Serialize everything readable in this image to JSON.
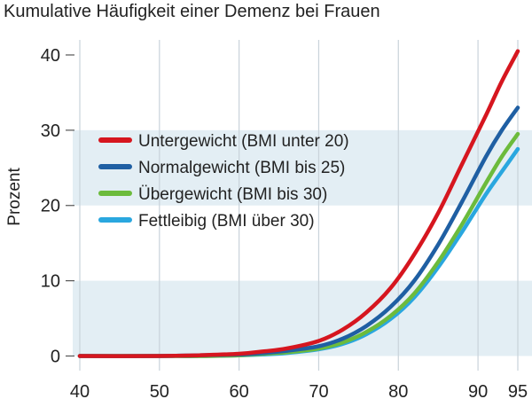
{
  "chart_data": {
    "type": "line",
    "title": "Kumulative Häufigkeit einer Demenz bei Frauen",
    "ylabel": "Prozent",
    "xlabel": "",
    "xlim": [
      40,
      95
    ],
    "ylim": [
      -1,
      42
    ],
    "xticks": [
      40,
      50,
      60,
      70,
      80,
      90,
      95
    ],
    "yticks": [
      0,
      10,
      20,
      30,
      40
    ],
    "grid": true,
    "legend_position": "left, upper middle",
    "series": [
      {
        "name": "Untergewicht (BMI unter 20)",
        "color": "#d6161f",
        "points": [
          [
            40,
            0
          ],
          [
            50,
            0
          ],
          [
            55,
            0.1
          ],
          [
            60,
            0.3
          ],
          [
            63,
            0.6
          ],
          [
            66,
            1.0
          ],
          [
            70,
            2.0
          ],
          [
            73,
            3.5
          ],
          [
            76,
            5.8
          ],
          [
            79,
            9.0
          ],
          [
            82,
            13.5
          ],
          [
            85,
            19.0
          ],
          [
            88,
            25.5
          ],
          [
            91,
            32.0
          ],
          [
            93,
            36.5
          ],
          [
            95,
            40.5
          ]
        ]
      },
      {
        "name": "Normalgewicht (BMI bis 25)",
        "color": "#1f5fa3",
        "points": [
          [
            40,
            0
          ],
          [
            50,
            0
          ],
          [
            55,
            0.1
          ],
          [
            60,
            0.2
          ],
          [
            63,
            0.4
          ],
          [
            66,
            0.7
          ],
          [
            70,
            1.3
          ],
          [
            73,
            2.3
          ],
          [
            76,
            4.0
          ],
          [
            79,
            6.5
          ],
          [
            82,
            10.0
          ],
          [
            85,
            14.8
          ],
          [
            88,
            20.5
          ],
          [
            91,
            26.5
          ],
          [
            93,
            30.0
          ],
          [
            95,
            33.0
          ]
        ]
      },
      {
        "name": "Übergewicht (BMI bis 30)",
        "color": "#6cbb3c",
        "points": [
          [
            40,
            0
          ],
          [
            50,
            0
          ],
          [
            55,
            0
          ],
          [
            60,
            0.1
          ],
          [
            63,
            0.3
          ],
          [
            66,
            0.5
          ],
          [
            70,
            1.0
          ],
          [
            73,
            1.8
          ],
          [
            76,
            3.2
          ],
          [
            79,
            5.3
          ],
          [
            82,
            8.3
          ],
          [
            85,
            12.5
          ],
          [
            88,
            17.5
          ],
          [
            91,
            23.0
          ],
          [
            93,
            26.5
          ],
          [
            95,
            29.5
          ]
        ]
      },
      {
        "name": "Fettleibig (BMI über 30)",
        "color": "#2aa7df",
        "points": [
          [
            40,
            0
          ],
          [
            50,
            0
          ],
          [
            55,
            0
          ],
          [
            60,
            0.1
          ],
          [
            63,
            0.2
          ],
          [
            66,
            0.4
          ],
          [
            70,
            0.9
          ],
          [
            73,
            1.6
          ],
          [
            76,
            2.9
          ],
          [
            79,
            4.9
          ],
          [
            82,
            7.8
          ],
          [
            85,
            11.8
          ],
          [
            88,
            16.5
          ],
          [
            91,
            21.5
          ],
          [
            93,
            24.5
          ],
          [
            95,
            27.5
          ]
        ]
      }
    ]
  }
}
